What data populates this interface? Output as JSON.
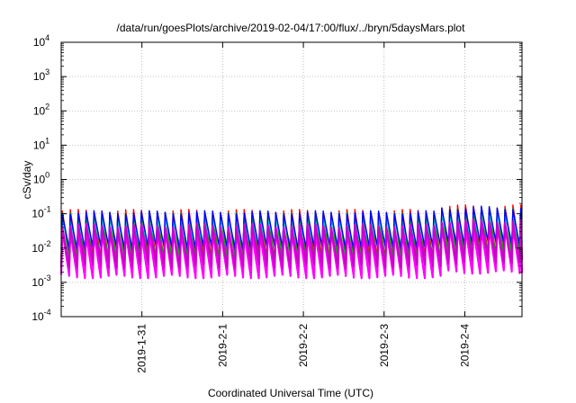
{
  "chart_data": {
    "type": "line",
    "title": "/data/run/goesPlots/archive/2019-02-04/17:00/flux/../bryn/5daysMars.plot",
    "xlabel": "Coordinated Universal Time (UTC)",
    "ylabel": "cSv/day",
    "y_scale": "log",
    "ylim": [
      0.0001,
      10000
    ],
    "y_ticks": [
      {
        "value": 0.0001,
        "base": "10",
        "exp": "-4"
      },
      {
        "value": 0.001,
        "base": "10",
        "exp": "-3"
      },
      {
        "value": 0.01,
        "base": "10",
        "exp": "-2"
      },
      {
        "value": 0.1,
        "base": "10",
        "exp": "-1"
      },
      {
        "value": 1,
        "base": "10",
        "exp": "0"
      },
      {
        "value": 10,
        "base": "10",
        "exp": "1"
      },
      {
        "value": 100,
        "base": "10",
        "exp": "2"
      },
      {
        "value": 1000,
        "base": "10",
        "exp": "3"
      },
      {
        "value": 10000,
        "base": "10",
        "exp": "4"
      }
    ],
    "xlim": [
      "2019-01-30T00:00",
      "2019-02-04T17:00"
    ],
    "x_ticks": [
      {
        "value": "2019-01-31T00:00",
        "label": "2019-1-31"
      },
      {
        "value": "2019-02-01T00:00",
        "label": "2019-2-1"
      },
      {
        "value": "2019-02-02T00:00",
        "label": "2019-2-2"
      },
      {
        "value": "2019-02-03T00:00",
        "label": "2019-2-3"
      },
      {
        "value": "2019-02-04T00:00",
        "label": "2019-2-4"
      }
    ],
    "grid": true,
    "legend": "none",
    "period_hours": 2.35,
    "series_peaks": [
      {
        "color": "#ff0000",
        "peak": 0.12,
        "trough": 0.0055
      },
      {
        "color": "#00aa00",
        "peak": 0.095,
        "trough": 0.0045
      },
      {
        "color": "#ff00ff",
        "peak": 0.03,
        "trough": 0.0015
      },
      {
        "color": "#00cccc",
        "peak": 0.06,
        "trough": 0.012
      },
      {
        "color": "#0000ff",
        "peak": 0.11,
        "trough": 0.01
      },
      {
        "color": "#cc00cc",
        "peak": 0.045,
        "trough": 0.003
      }
    ],
    "enhancement": [
      {
        "start": "2019-02-03T16:00",
        "end": "2019-02-04T17:00",
        "factor": 1.35
      }
    ]
  }
}
